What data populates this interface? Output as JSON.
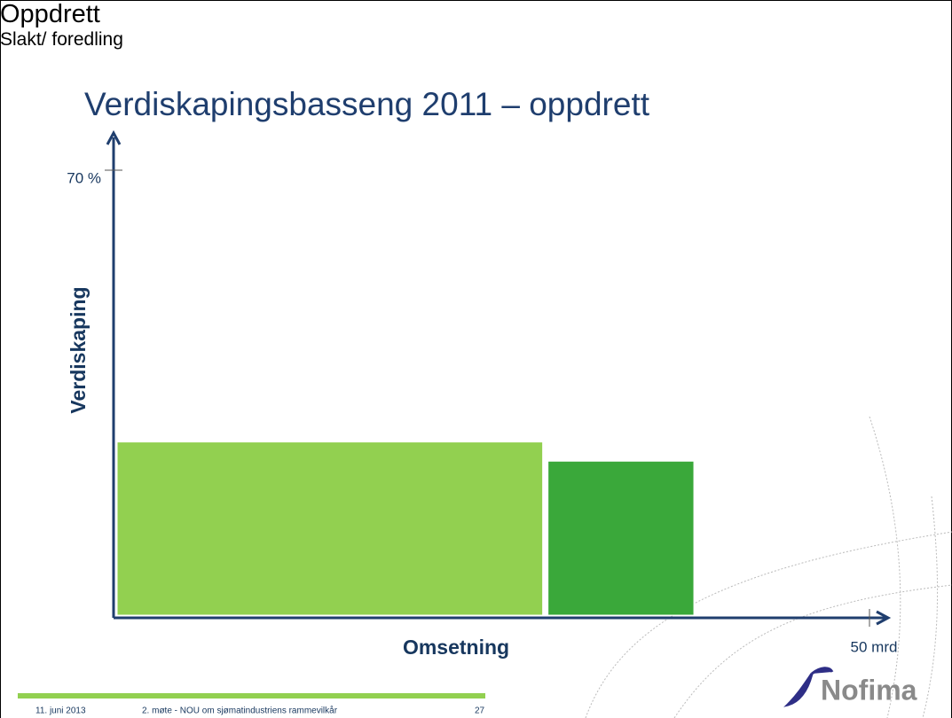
{
  "chart_data": {
    "type": "variwide",
    "title": "Verdiskapingsbasseng 2011 – oppdrett",
    "x_label": "Omsetning",
    "y_label": "Verdiskaping",
    "categories": [
      "Oppdrett",
      "Slakt/\nforedling"
    ],
    "widths": [
      28.5,
      10
    ],
    "values": [
      27.5,
      24.5
    ],
    "colors": [
      "#92d050",
      "#3aa83a"
    ],
    "xlim": [
      0,
      50
    ],
    "xticks": [
      {
        "value": 50,
        "label": "50 mrd"
      }
    ],
    "ylim": [
      0,
      70
    ],
    "yticks": [
      {
        "value": 70,
        "label": "70 %"
      }
    ]
  },
  "footer": {
    "date": "11. juni 2013",
    "text": "2. møte - NOU om sjømatindustriens rammevilkår",
    "page": "27",
    "logo": "Nofima"
  }
}
